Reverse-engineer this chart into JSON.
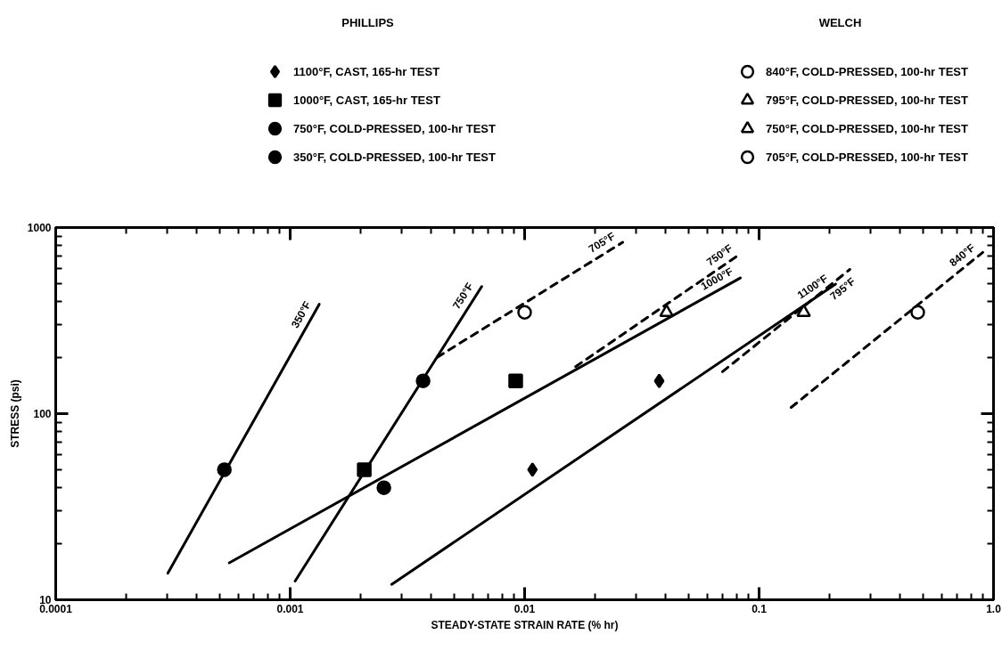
{
  "chart_data": {
    "type": "scatter",
    "xlabel": "STEADY-STATE STRAIN RATE (% hr)",
    "ylabel": "STRESS (psi)",
    "log": "xy",
    "xlim": [
      0.0001,
      1.0
    ],
    "ylim": [
      10,
      1000
    ],
    "xticks": [
      0.0001,
      0.001,
      0.01,
      0.1,
      {
        "value": 1,
        "label": "1.0"
      }
    ],
    "yticks": [
      10,
      100,
      1000
    ],
    "grid": false,
    "legend": "top",
    "series": [
      {
        "name": "1100°F, CAST, 165-hr TEST",
        "marker": "diamond",
        "color": "#000000",
        "x": [
          0.0108,
          0.0375
        ],
        "values": [
          50,
          150
        ]
      },
      {
        "name": "1000°F, CAST, 165-hr TEST",
        "marker": "square",
        "color": "#000000",
        "x": [
          0.00207,
          0.00916
        ],
        "values": [
          50,
          150
        ]
      },
      {
        "name": "750°F, COLD-PRESSED, 100-hr TEST",
        "marker": "circle",
        "color": "#000000",
        "x": [
          0.00369,
          0.00251
        ],
        "values": [
          150,
          40
        ]
      },
      {
        "name": "350°F, COLD-PRESSED, 100-hr TEST",
        "marker": "circle",
        "color": "#000000",
        "x": [
          0.000524
        ],
        "values": [
          50
        ]
      },
      {
        "name": "840°F, COLD-PRESSED, 100-hr TEST",
        "marker": "circle_open",
        "color": "#000000",
        "x": [
          0.475
        ],
        "values": [
          350
        ]
      },
      {
        "name": "795°F, COLD-PRESSED, 100-hr TEST",
        "marker": "triangle_open",
        "color": "#000000",
        "x": [
          0.155
        ],
        "values": [
          350
        ]
      },
      {
        "name": "750°F, COLD-PRESSED, 100-hr TEST",
        "marker": "triangle_open",
        "color": "#000000",
        "x": [
          0.0403
        ],
        "values": [
          350
        ]
      },
      {
        "name": "705°F, COLD-PRESSED, 100-hr TEST",
        "marker": "circle_open",
        "color": "#000000",
        "x": [
          0.01
        ],
        "values": [
          350
        ]
      },
      {
        "name": "350°F",
        "type": "line",
        "line_style": "solid",
        "color": "#000000",
        "x": [
          0.000301,
          0.00133
        ],
        "values": [
          13.9,
          387
        ]
      },
      {
        "name": "750°F",
        "type": "line",
        "line_style": "solid",
        "color": "#000000",
        "x": [
          0.00105,
          0.00656
        ],
        "values": [
          12.6,
          482
        ]
      },
      {
        "name": "1000°F",
        "type": "line",
        "line_style": "solid",
        "color": "#000000",
        "x": [
          0.00055,
          0.0832
        ],
        "values": [
          15.8,
          536
        ]
      },
      {
        "name": "1100°F",
        "type": "line",
        "line_style": "solid",
        "color": "#000000",
        "x": [
          0.00271,
          0.212
        ],
        "values": [
          12.1,
          497
        ]
      },
      {
        "name": "705°F",
        "type": "line",
        "line_style": "dashed",
        "color": "#000000",
        "x": [
          0.00424,
          0.0262
        ],
        "values": [
          201,
          833
        ]
      },
      {
        "name": "750°F",
        "type": "line",
        "line_style": "dashed",
        "color": "#000000",
        "x": [
          0.0165,
          0.0832
        ],
        "values": [
          179,
          722
        ]
      },
      {
        "name": "795°F",
        "type": "line",
        "line_style": "dashed",
        "color": "#000000",
        "x": [
          0.0698,
          0.244
        ],
        "values": [
          168,
          596
        ]
      },
      {
        "name": "840°F",
        "type": "line",
        "line_style": "dashed",
        "color": "#000000",
        "x": [
          0.137,
          0.9
        ],
        "values": [
          108,
          736
        ]
      }
    ],
    "annotations": [
      "PHILLIPS",
      "WELCH"
    ]
  }
}
